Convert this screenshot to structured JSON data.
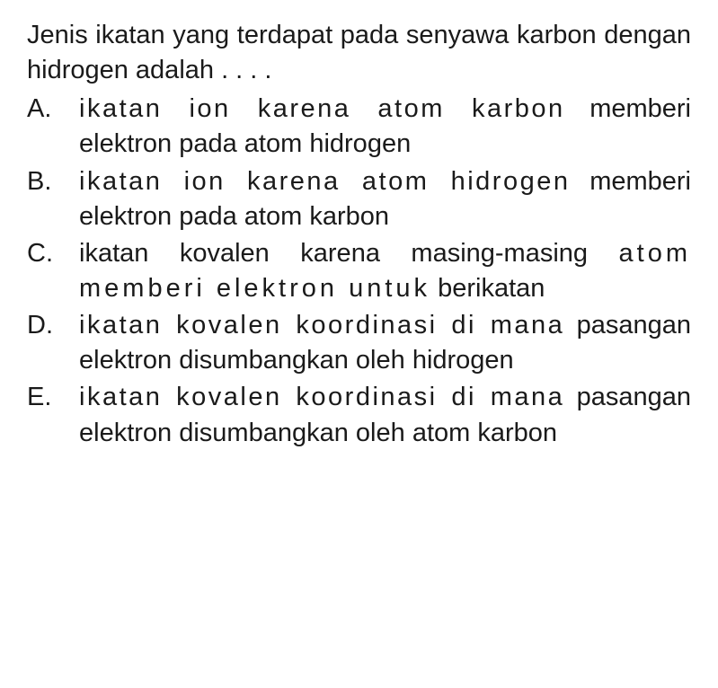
{
  "question": {
    "line1": "Jenis ikatan yang terdapat pada senyawa",
    "line2": "karbon dengan hidrogen adalah . . . ."
  },
  "options": [
    {
      "label": "A.",
      "lines": [
        {
          "text": "ikatan ion karena atom karbon",
          "spacing": "spaced"
        },
        {
          "text": "memberi elektron pada atom hidrogen",
          "spacing": ""
        }
      ]
    },
    {
      "label": "B.",
      "lines": [
        {
          "text": "ikatan ion karena atom hidrogen",
          "spacing": "spaced"
        },
        {
          "text": "memberi elektron pada atom karbon",
          "spacing": ""
        }
      ]
    },
    {
      "label": "C.",
      "lines": [
        {
          "text": "ikatan kovalen karena masing-masing",
          "spacing": ""
        },
        {
          "text": "atom memberi elektron untuk",
          "spacing": "spaced-more"
        },
        {
          "text": "berikatan",
          "spacing": ""
        }
      ]
    },
    {
      "label": "D.",
      "lines": [
        {
          "text": "ikatan kovalen koordinasi di mana",
          "spacing": "spaced"
        },
        {
          "text": "pasangan elektron disumbangkan oleh",
          "spacing": ""
        },
        {
          "text": "hidrogen",
          "spacing": ""
        }
      ]
    },
    {
      "label": "E.",
      "lines": [
        {
          "text": "ikatan kovalen koordinasi di mana",
          "spacing": "spaced"
        },
        {
          "text": "pasangan elektron disumbangkan oleh",
          "spacing": ""
        },
        {
          "text": "atom karbon",
          "spacing": ""
        }
      ]
    }
  ],
  "styles": {
    "font_size": 29,
    "text_color": "#1a1a1a",
    "background_color": "#ffffff",
    "line_height": 1.35,
    "label_width": 58
  }
}
